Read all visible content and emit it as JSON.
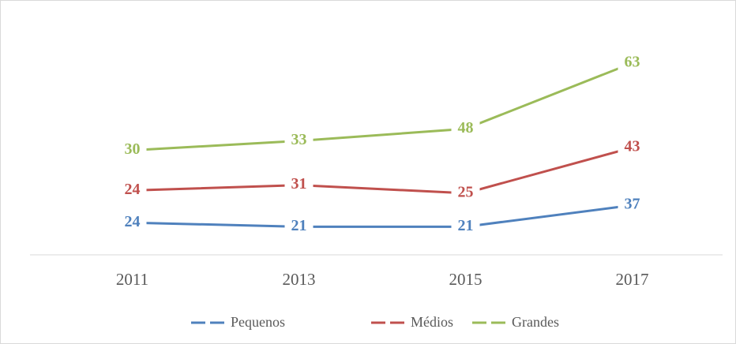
{
  "chart_data": {
    "type": "line",
    "stacked": true,
    "categories": [
      "2011",
      "2013",
      "2015",
      "2017"
    ],
    "series": [
      {
        "name": "Pequenos",
        "color": "#4f81bd",
        "values": [
          24,
          21,
          21,
          37
        ]
      },
      {
        "name": "Médios",
        "color": "#c0504d",
        "values": [
          24,
          31,
          25,
          43
        ]
      },
      {
        "name": "Grandes",
        "color": "#9bbb59",
        "values": [
          30,
          33,
          48,
          63
        ]
      }
    ]
  }
}
